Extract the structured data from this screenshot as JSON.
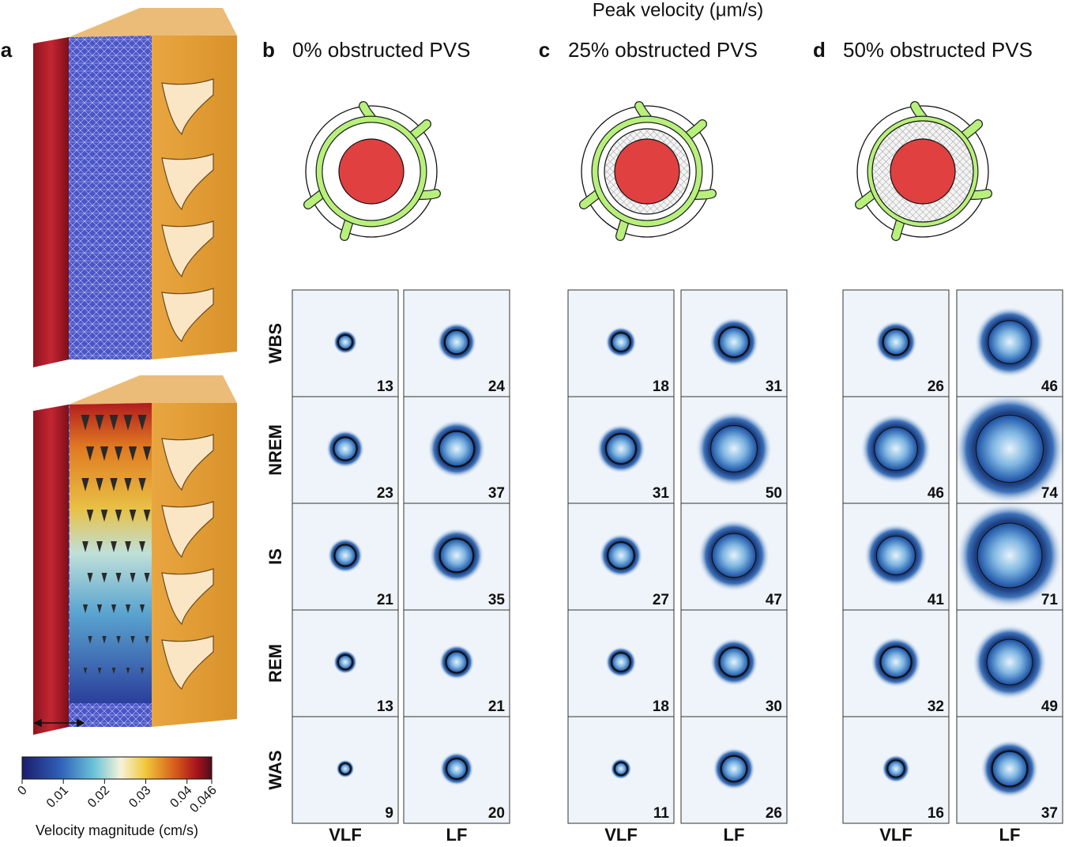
{
  "header": {
    "title": "Peak velocity (μm/s)"
  },
  "panel_a": {
    "letter": "a",
    "colorbar": {
      "ticks": [
        0,
        0.01,
        0.02,
        0.03,
        0.04,
        0.046
      ],
      "lim": [
        0,
        0.046
      ],
      "label": "Velocity magnitude (cm/s)"
    }
  },
  "rows": [
    "WBS",
    "NREM",
    "IS",
    "REM",
    "WAS"
  ],
  "columns": [
    "VLF",
    "LF"
  ],
  "panels": [
    {
      "letter": "b",
      "title": "0% obstructed PVS",
      "values": [
        [
          13,
          24
        ],
        [
          23,
          37
        ],
        [
          21,
          35
        ],
        [
          13,
          21
        ],
        [
          9,
          20
        ]
      ]
    },
    {
      "letter": "c",
      "title": "25% obstructed PVS",
      "values": [
        [
          18,
          31
        ],
        [
          31,
          50
        ],
        [
          27,
          47
        ],
        [
          18,
          30
        ],
        [
          11,
          26
        ]
      ]
    },
    {
      "letter": "d",
      "title": "50% obstructed PVS",
      "values": [
        [
          26,
          46
        ],
        [
          46,
          74
        ],
        [
          41,
          71
        ],
        [
          32,
          49
        ],
        [
          16,
          37
        ]
      ]
    }
  ]
}
